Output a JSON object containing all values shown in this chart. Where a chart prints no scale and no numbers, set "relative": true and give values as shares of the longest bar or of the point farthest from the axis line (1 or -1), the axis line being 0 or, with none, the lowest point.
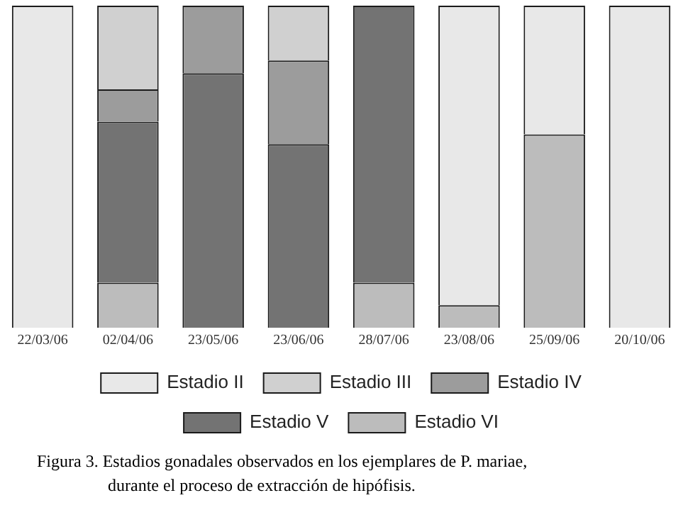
{
  "chart_data": {
    "type": "bar",
    "stacked": true,
    "relative": true,
    "grid": false,
    "legend": "bottom",
    "categories": [
      "22/03/06",
      "02/04/06",
      "23/05/06",
      "23/06/06",
      "28/07/06",
      "23/08/06",
      "25/09/06",
      "20/10/06"
    ],
    "series": [
      {
        "name": "Estadio VI",
        "color": "#bcbcbc",
        "values": [
          0,
          0.14,
          0,
          0,
          0.14,
          0.07,
          0.6,
          0
        ]
      },
      {
        "name": "Estadio V",
        "color": "#737373",
        "values": [
          0,
          0.5,
          0.79,
          0.57,
          0.86,
          0,
          0,
          0
        ]
      },
      {
        "name": "Estadio IV",
        "color": "#9c9c9c",
        "values": [
          0,
          0.1,
          0.21,
          0.26,
          0,
          0,
          0,
          0
        ]
      },
      {
        "name": "Estadio III",
        "color": "#d0d0d0",
        "values": [
          0,
          0.26,
          0,
          0.17,
          0,
          0,
          0,
          0
        ]
      },
      {
        "name": "Estadio II",
        "color": "#e8e8e8",
        "values": [
          1,
          0,
          0,
          0,
          0,
          0.93,
          0.4,
          1
        ]
      }
    ],
    "annotations": [
      "Figura 3. Estadios gonadales observados en los ejemplares de P. mariae, durante el proceso de extracción de hipófisis."
    ]
  }
}
